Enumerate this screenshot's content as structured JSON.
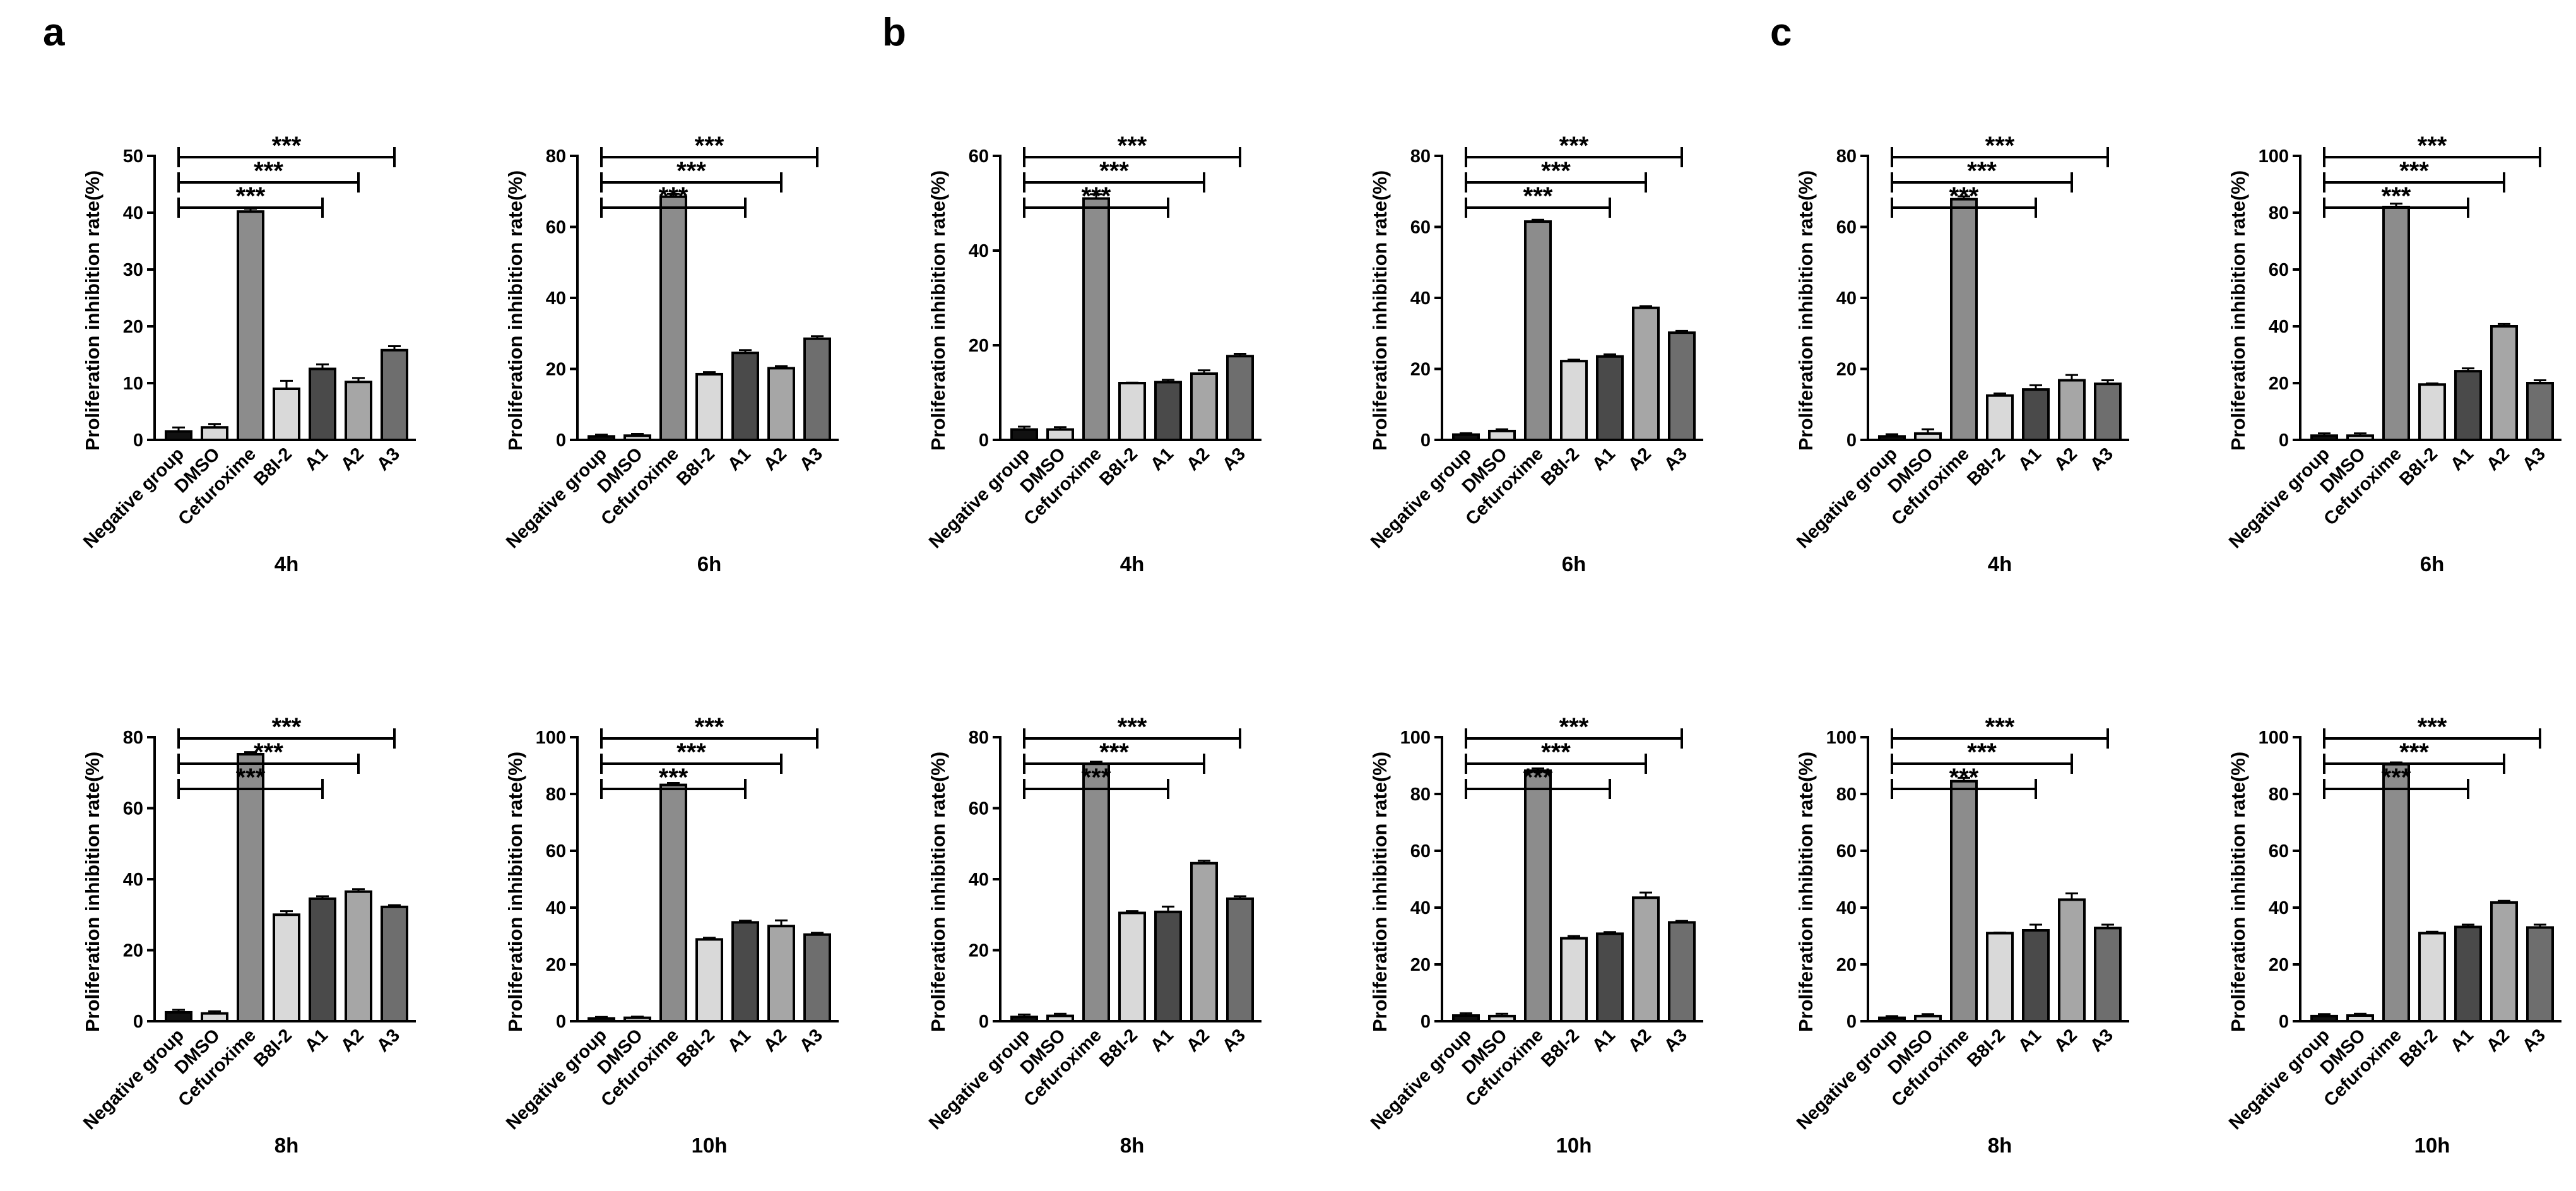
{
  "panel_letters": [
    "a",
    "b",
    "c"
  ],
  "colors": {
    "Negative group": "#111111",
    "DMSO": "#d9d9d9",
    "Cefuroxime": "#8c8c8c",
    "B8I-2": "#d9d9d9",
    "A1": "#4a4a4a",
    "A2": "#a6a6a6",
    "A3": "#6e6e6e"
  },
  "chart_data": [
    {
      "panel": "a",
      "type": "bar",
      "xlabel": "4h",
      "ylabel": "Proliferation inhibition rate(%)",
      "categories": [
        "Negative group",
        "DMSO",
        "Cefuroxime",
        "B8I-2",
        "A1",
        "A2",
        "A3"
      ],
      "values": [
        1.5,
        2.2,
        40.2,
        9.0,
        12.5,
        10.2,
        15.8
      ],
      "errors": [
        0.7,
        0.6,
        0.5,
        1.4,
        0.8,
        0.7,
        0.7
      ],
      "ylim": [
        0,
        50
      ],
      "yticks": [
        0,
        10,
        20,
        30,
        40,
        50
      ],
      "significance": [
        {
          "compare": [
            "Negative group",
            "A1"
          ],
          "label": "***"
        },
        {
          "compare": [
            "Negative group",
            "A2"
          ],
          "label": "***"
        },
        {
          "compare": [
            "Negative group",
            "A3"
          ],
          "label": "***"
        }
      ]
    },
    {
      "panel": "a",
      "type": "bar",
      "xlabel": "6h",
      "ylabel": "Proliferation inhibition rate(%)",
      "categories": [
        "Negative group",
        "DMSO",
        "Cefuroxime",
        "B8I-2",
        "A1",
        "A2",
        "A3"
      ],
      "values": [
        1.0,
        1.2,
        68.5,
        18.5,
        24.5,
        20.2,
        28.5
      ],
      "errors": [
        0.5,
        0.5,
        0.8,
        0.6,
        0.8,
        0.6,
        0.7
      ],
      "ylim": [
        0,
        80
      ],
      "yticks": [
        0,
        20,
        40,
        60,
        80
      ],
      "significance": [
        {
          "compare": [
            "Negative group",
            "A1"
          ],
          "label": "***"
        },
        {
          "compare": [
            "Negative group",
            "A2"
          ],
          "label": "***"
        },
        {
          "compare": [
            "Negative group",
            "A3"
          ],
          "label": "***"
        }
      ]
    },
    {
      "panel": "b",
      "type": "bar",
      "xlabel": "4h",
      "ylabel": "Proliferation inhibition rate(%)",
      "categories": [
        "Negative group",
        "DMSO",
        "Cefuroxime",
        "B8I-2",
        "A1",
        "A2",
        "A3"
      ],
      "values": [
        2.2,
        2.2,
        51.0,
        12.0,
        12.2,
        14.0,
        17.7
      ],
      "errors": [
        0.6,
        0.5,
        0.9,
        0.1,
        0.5,
        0.7,
        0.5
      ],
      "ylim": [
        0,
        60
      ],
      "yticks": [
        0,
        20,
        40,
        60
      ],
      "significance": [
        {
          "compare": [
            "Negative group",
            "A1"
          ],
          "label": "***"
        },
        {
          "compare": [
            "Negative group",
            "A2"
          ],
          "label": "***"
        },
        {
          "compare": [
            "Negative group",
            "A3"
          ],
          "label": "***"
        }
      ]
    },
    {
      "panel": "b",
      "type": "bar",
      "xlabel": "6h",
      "ylabel": "Proliferation inhibition rate(%)",
      "categories": [
        "Negative group",
        "DMSO",
        "Cefuroxime",
        "B8I-2",
        "A1",
        "A2",
        "A3"
      ],
      "values": [
        1.5,
        2.5,
        61.5,
        22.2,
        23.5,
        37.2,
        30.2
      ],
      "errors": [
        0.4,
        0.5,
        0.5,
        0.4,
        0.6,
        0.5,
        0.5
      ],
      "ylim": [
        0,
        80
      ],
      "yticks": [
        0,
        20,
        40,
        60,
        80
      ],
      "significance": [
        {
          "compare": [
            "Negative group",
            "A1"
          ],
          "label": "***"
        },
        {
          "compare": [
            "Negative group",
            "A2"
          ],
          "label": "***"
        },
        {
          "compare": [
            "Negative group",
            "A3"
          ],
          "label": "***"
        }
      ]
    },
    {
      "panel": "c",
      "type": "bar",
      "xlabel": "4h",
      "ylabel": "Proliferation inhibition rate(%)",
      "categories": [
        "Negative group",
        "DMSO",
        "Cefuroxime",
        "B8I-2",
        "A1",
        "A2",
        "A3"
      ],
      "values": [
        1.0,
        1.8,
        67.8,
        12.5,
        14.2,
        16.8,
        15.8
      ],
      "errors": [
        0.6,
        1.2,
        0.8,
        0.6,
        1.2,
        1.5,
        1.0
      ],
      "ylim": [
        0,
        80
      ],
      "yticks": [
        0,
        20,
        40,
        60,
        80
      ],
      "significance": [
        {
          "compare": [
            "Negative group",
            "A1"
          ],
          "label": "***"
        },
        {
          "compare": [
            "Negative group",
            "A2"
          ],
          "label": "***"
        },
        {
          "compare": [
            "Negative group",
            "A3"
          ],
          "label": "***"
        }
      ]
    },
    {
      "panel": "c",
      "type": "bar",
      "xlabel": "6h",
      "ylabel": "Proliferation inhibition rate(%)",
      "categories": [
        "Negative group",
        "DMSO",
        "Cefuroxime",
        "B8I-2",
        "A1",
        "A2",
        "A3"
      ],
      "values": [
        1.5,
        1.5,
        82.0,
        19.5,
        24.2,
        40.0,
        20.0
      ],
      "errors": [
        0.8,
        0.8,
        1.2,
        0.4,
        1.0,
        0.8,
        1.0
      ],
      "ylim": [
        0,
        100
      ],
      "yticks": [
        0,
        20,
        40,
        60,
        80,
        100
      ],
      "significance": [
        {
          "compare": [
            "Negative group",
            "A1"
          ],
          "label": "***"
        },
        {
          "compare": [
            "Negative group",
            "A2"
          ],
          "label": "***"
        },
        {
          "compare": [
            "Negative group",
            "A3"
          ],
          "label": "***"
        }
      ]
    },
    {
      "panel": "a",
      "type": "bar",
      "xlabel": "8h",
      "ylabel": "Proliferation inhibition rate(%)",
      "categories": [
        "Negative group",
        "DMSO",
        "Cefuroxime",
        "B8I-2",
        "A1",
        "A2",
        "A3"
      ],
      "values": [
        2.5,
        2.2,
        75.2,
        30.0,
        34.5,
        36.5,
        32.2
      ],
      "errors": [
        0.7,
        0.6,
        0.6,
        1.0,
        0.7,
        0.7,
        0.5
      ],
      "ylim": [
        0,
        80
      ],
      "yticks": [
        0,
        20,
        40,
        60,
        80
      ],
      "significance": [
        {
          "compare": [
            "Negative group",
            "A1"
          ],
          "label": "***"
        },
        {
          "compare": [
            "Negative group",
            "A2"
          ],
          "label": "***"
        },
        {
          "compare": [
            "Negative group",
            "A3"
          ],
          "label": "***"
        }
      ]
    },
    {
      "panel": "a",
      "type": "bar",
      "xlabel": "10h",
      "ylabel": "Proliferation inhibition rate(%)",
      "categories": [
        "Negative group",
        "DMSO",
        "Cefuroxime",
        "B8I-2",
        "A1",
        "A2",
        "A3"
      ],
      "values": [
        1.0,
        1.2,
        83.2,
        28.8,
        34.8,
        33.5,
        30.5
      ],
      "errors": [
        0.5,
        0.4,
        0.7,
        0.6,
        0.6,
        2.0,
        0.6
      ],
      "ylim": [
        0,
        100
      ],
      "yticks": [
        0,
        20,
        40,
        60,
        80,
        100
      ],
      "significance": [
        {
          "compare": [
            "Negative group",
            "A1"
          ],
          "label": "***"
        },
        {
          "compare": [
            "Negative group",
            "A2"
          ],
          "label": "***"
        },
        {
          "compare": [
            "Negative group",
            "A3"
          ],
          "label": "***"
        }
      ]
    },
    {
      "panel": "b",
      "type": "bar",
      "xlabel": "8h",
      "ylabel": "Proliferation inhibition rate(%)",
      "categories": [
        "Negative group",
        "DMSO",
        "Cefuroxime",
        "B8I-2",
        "A1",
        "A2",
        "A3"
      ],
      "values": [
        1.2,
        1.5,
        72.5,
        30.5,
        30.8,
        44.5,
        34.5
      ],
      "errors": [
        0.7,
        0.6,
        0.6,
        0.5,
        1.5,
        0.7,
        0.7
      ],
      "ylim": [
        0,
        80
      ],
      "yticks": [
        0,
        20,
        40,
        60,
        80
      ],
      "significance": [
        {
          "compare": [
            "Negative group",
            "A1"
          ],
          "label": "***"
        },
        {
          "compare": [
            "Negative group",
            "A2"
          ],
          "label": "***"
        },
        {
          "compare": [
            "Negative group",
            "A3"
          ],
          "label": "***"
        }
      ]
    },
    {
      "panel": "b",
      "type": "bar",
      "xlabel": "10h",
      "ylabel": "Proliferation inhibition rate(%)",
      "categories": [
        "Negative group",
        "DMSO",
        "Cefuroxime",
        "B8I-2",
        "A1",
        "A2",
        "A3"
      ],
      "values": [
        2.0,
        1.8,
        88.2,
        29.2,
        30.8,
        43.5,
        34.8
      ],
      "errors": [
        0.8,
        0.8,
        0.8,
        0.8,
        0.6,
        1.8,
        0.5
      ],
      "ylim": [
        0,
        100
      ],
      "yticks": [
        0,
        20,
        40,
        60,
        80,
        100
      ],
      "significance": [
        {
          "compare": [
            "Negative group",
            "A1"
          ],
          "label": "***"
        },
        {
          "compare": [
            "Negative group",
            "A2"
          ],
          "label": "***"
        },
        {
          "compare": [
            "Negative group",
            "A3"
          ],
          "label": "***"
        }
      ]
    },
    {
      "panel": "c",
      "type": "bar",
      "xlabel": "8h",
      "ylabel": "Proliferation inhibition rate(%)",
      "categories": [
        "Negative group",
        "DMSO",
        "Cefuroxime",
        "B8I-2",
        "A1",
        "A2",
        "A3"
      ],
      "values": [
        1.2,
        1.8,
        84.5,
        31.0,
        32.0,
        42.8,
        32.8
      ],
      "errors": [
        0.6,
        0.7,
        1.2,
        0.2,
        2.0,
        2.2,
        1.2
      ],
      "ylim": [
        0,
        100
      ],
      "yticks": [
        0,
        20,
        40,
        60,
        80,
        100
      ],
      "significance": [
        {
          "compare": [
            "Negative group",
            "A1"
          ],
          "label": "***"
        },
        {
          "compare": [
            "Negative group",
            "A2"
          ],
          "label": "***"
        },
        {
          "compare": [
            "Negative group",
            "A3"
          ],
          "label": "***"
        }
      ]
    },
    {
      "panel": "c",
      "type": "bar",
      "xlabel": "10h",
      "ylabel": "Proliferation inhibition rate(%)",
      "categories": [
        "Negative group",
        "DMSO",
        "Cefuroxime",
        "B8I-2",
        "A1",
        "A2",
        "A3"
      ],
      "values": [
        1.8,
        2.0,
        90.5,
        31.0,
        33.2,
        41.8,
        33.0
      ],
      "errors": [
        0.7,
        0.6,
        0.6,
        0.5,
        0.8,
        0.6,
        1.0
      ],
      "ylim": [
        0,
        100
      ],
      "yticks": [
        0,
        20,
        40,
        60,
        80,
        100
      ],
      "significance": [
        {
          "compare": [
            "Negative group",
            "A1"
          ],
          "label": "***"
        },
        {
          "compare": [
            "Negative group",
            "A2"
          ],
          "label": "***"
        },
        {
          "compare": [
            "Negative group",
            "A3"
          ],
          "label": "***"
        }
      ]
    }
  ]
}
